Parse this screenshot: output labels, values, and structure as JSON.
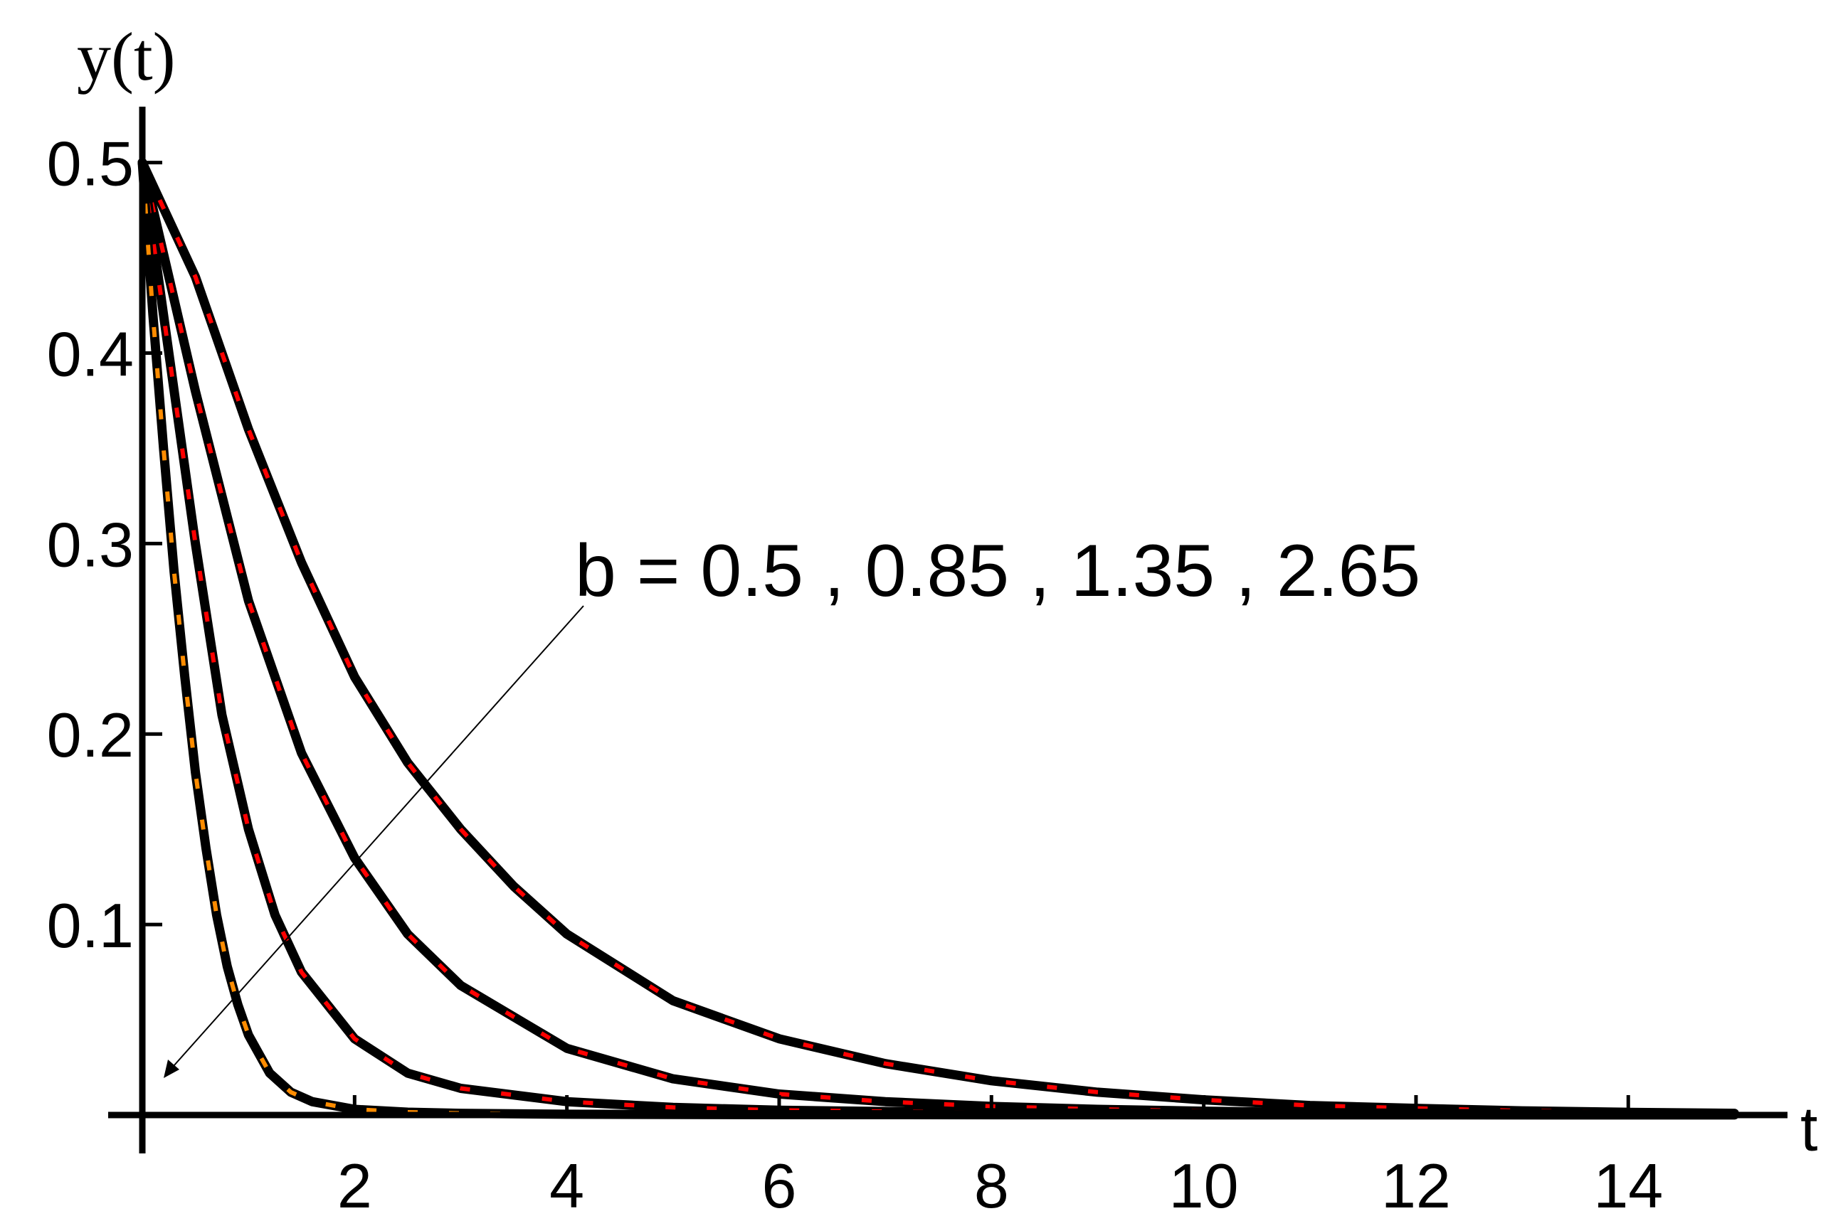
{
  "chart_data": {
    "type": "line",
    "xlabel": "t",
    "ylabel": "y(t)",
    "xlim": [
      0,
      15.5
    ],
    "ylim": [
      0,
      0.52
    ],
    "xticks": [
      2,
      4,
      6,
      8,
      10,
      12,
      14
    ],
    "xtick_labels": [
      "2",
      "4",
      "6",
      "8",
      "10",
      "12",
      "14"
    ],
    "yticks": [
      0.1,
      0.2,
      0.3,
      0.4,
      0.5
    ],
    "ytick_labels": [
      "0.1",
      "0.2",
      "0.3",
      "0.4",
      "0.5"
    ],
    "grid": false,
    "annotation": {
      "text": "b = 0.5 , 0.85 , 1.35 , 2.65",
      "arrow_direction": "increasing b"
    },
    "series": [
      {
        "b": 0.5,
        "color": "#000000",
        "dash_color": "#ff0000",
        "x": [
          0,
          0.5,
          1,
          1.5,
          2,
          2.5,
          3,
          3.5,
          4,
          5,
          6,
          7,
          8,
          9,
          10,
          11,
          12,
          13,
          14,
          15
        ],
        "y": [
          0.5,
          0.44,
          0.36,
          0.29,
          0.23,
          0.185,
          0.15,
          0.12,
          0.095,
          0.06,
          0.04,
          0.027,
          0.018,
          0.012,
          0.008,
          0.005,
          0.0035,
          0.0022,
          0.0014,
          0.0009
        ]
      },
      {
        "b": 0.85,
        "color": "#000000",
        "dash_color": "#ff0000",
        "x": [
          0,
          0.5,
          1,
          1.5,
          2,
          2.5,
          3,
          4,
          5,
          6,
          7,
          8,
          9,
          10,
          11,
          12,
          13,
          14,
          15
        ],
        "y": [
          0.5,
          0.38,
          0.27,
          0.19,
          0.135,
          0.095,
          0.068,
          0.035,
          0.019,
          0.011,
          0.007,
          0.0045,
          0.003,
          0.002,
          0.0013,
          0.0009,
          0.0006,
          0.0004,
          0.0003
        ]
      },
      {
        "b": 1.35,
        "color": "#000000",
        "dash_color": "#ff0000",
        "x": [
          0,
          0.25,
          0.5,
          0.75,
          1,
          1.25,
          1.5,
          2,
          2.5,
          3,
          4,
          5,
          6,
          8,
          10,
          12,
          15
        ],
        "y": [
          0.5,
          0.4,
          0.3,
          0.21,
          0.15,
          0.105,
          0.075,
          0.04,
          0.022,
          0.014,
          0.007,
          0.004,
          0.0025,
          0.0012,
          0.0007,
          0.0004,
          0.0002
        ]
      },
      {
        "b": 2.65,
        "color": "#000000",
        "dash_color": "#ff8c00",
        "x": [
          0,
          0.1,
          0.2,
          0.3,
          0.4,
          0.5,
          0.6,
          0.7,
          0.8,
          0.9,
          1.0,
          1.2,
          1.4,
          1.6,
          2.0,
          2.5,
          3,
          4,
          6,
          10,
          15
        ],
        "y": [
          0.5,
          0.42,
          0.35,
          0.285,
          0.23,
          0.18,
          0.14,
          0.105,
          0.078,
          0.058,
          0.042,
          0.022,
          0.012,
          0.007,
          0.003,
          0.0015,
          0.0009,
          0.0004,
          0.0002,
          0.0001,
          5e-05
        ]
      }
    ]
  }
}
